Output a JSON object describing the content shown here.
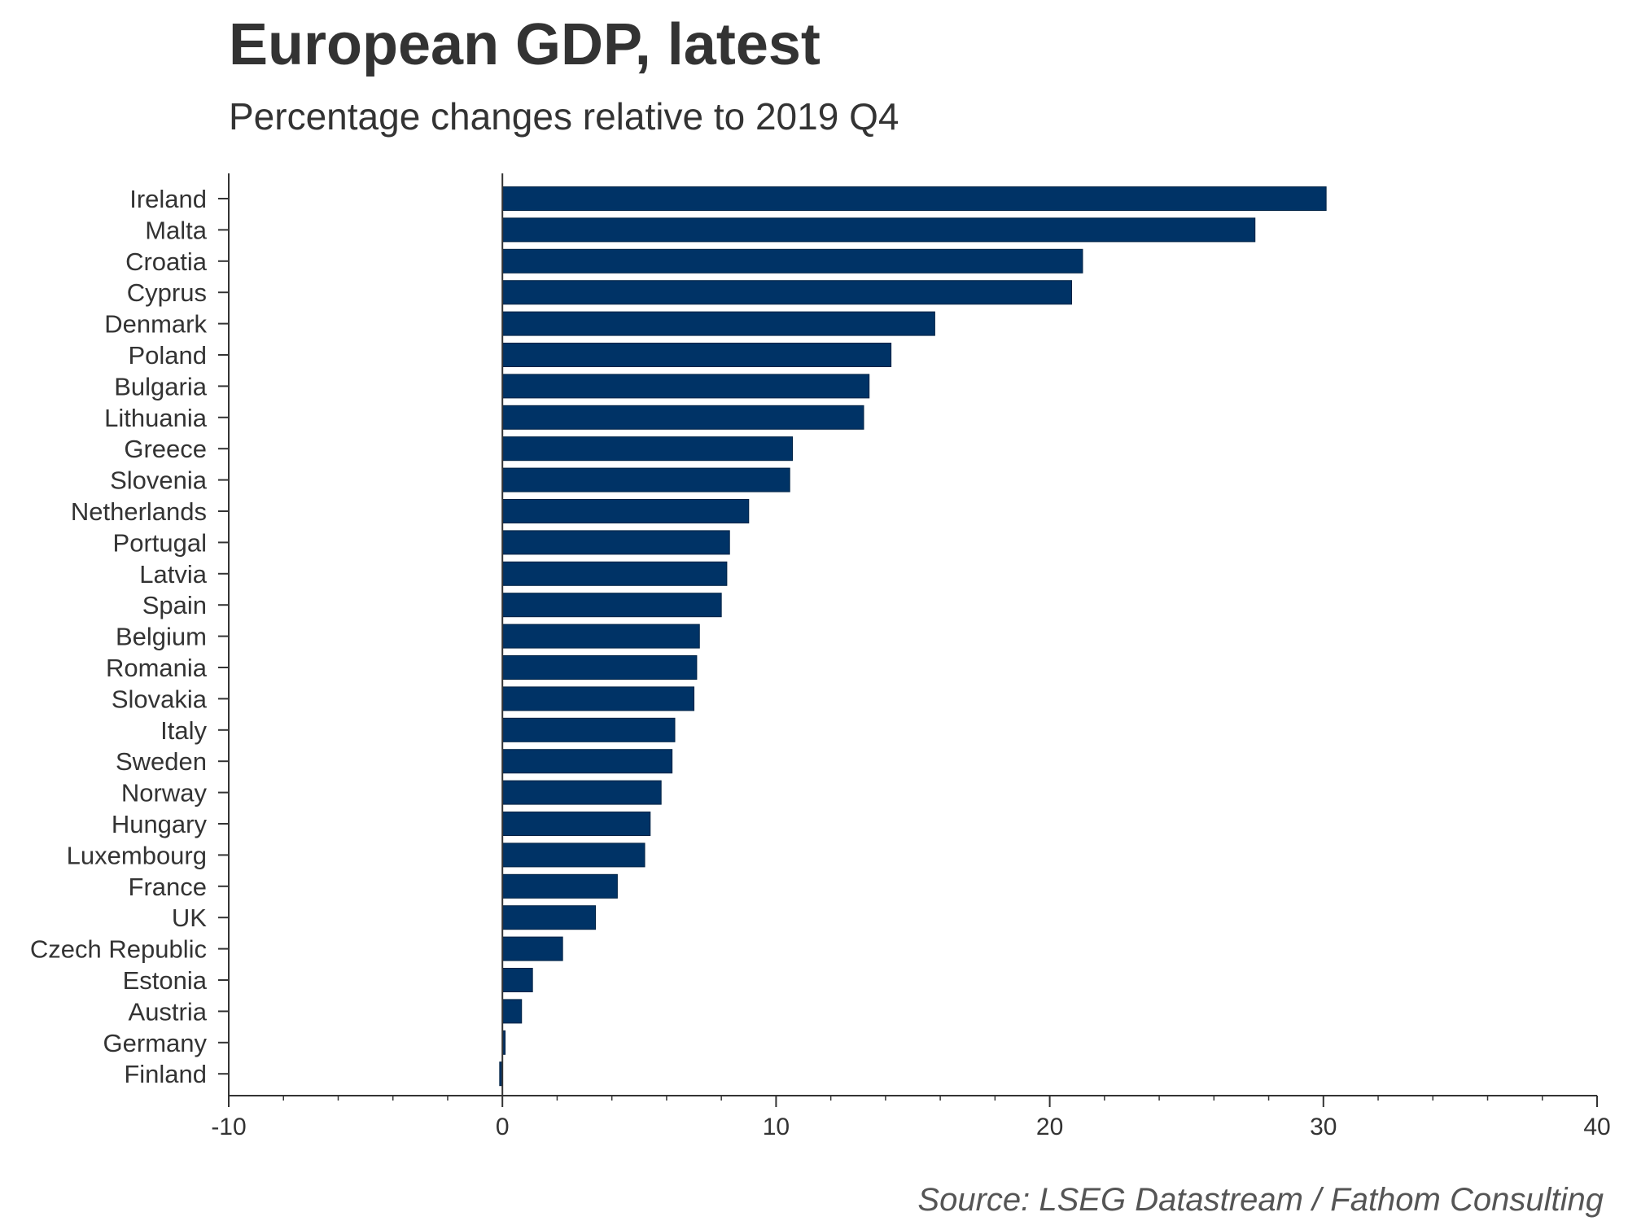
{
  "chart_data": {
    "type": "bar",
    "orientation": "horizontal",
    "title": "European GDP, latest",
    "subtitle": "Percentage changes relative to 2019 Q4",
    "source": "Source: LSEG Datastream / Fathom Consulting",
    "xlabel": "",
    "ylabel": "",
    "xlim": [
      -10,
      40
    ],
    "xticks": [
      -10,
      0,
      10,
      20,
      30,
      40
    ],
    "categories": [
      "Ireland",
      "Malta",
      "Croatia",
      "Cyprus",
      "Denmark",
      "Poland",
      "Bulgaria",
      "Lithuania",
      "Greece",
      "Slovenia",
      "Netherlands",
      "Portugal",
      "Latvia",
      "Spain",
      "Belgium",
      "Romania",
      "Slovakia",
      "Italy",
      "Sweden",
      "Norway",
      "Hungary",
      "Luxembourg",
      "France",
      "UK",
      "Czech Republic",
      "Estonia",
      "Austria",
      "Germany",
      "Finland"
    ],
    "values": [
      30.1,
      27.5,
      21.2,
      20.8,
      15.8,
      14.2,
      13.4,
      13.2,
      10.6,
      10.5,
      9.0,
      8.3,
      8.2,
      8.0,
      7.2,
      7.1,
      7.0,
      6.3,
      6.2,
      5.8,
      5.4,
      5.2,
      4.2,
      3.4,
      2.2,
      1.1,
      0.7,
      0.1,
      -0.1
    ],
    "bar_color": "#003366",
    "grid": false
  }
}
